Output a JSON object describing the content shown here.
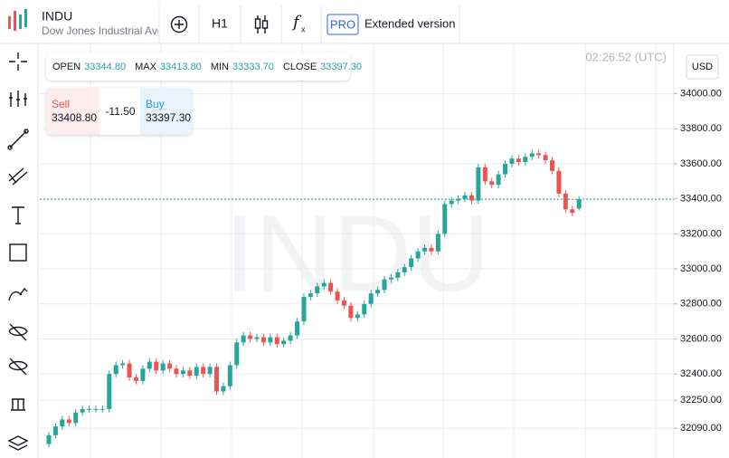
{
  "header": {
    "symbol": "INDU",
    "description": "Dow Jones Industrial Ave",
    "interval": "H1",
    "pro": "PRO",
    "extended": "Extended version"
  },
  "ohlc_info": {
    "open_label": "OPEN",
    "open": "33344.80",
    "max_label": "MAX",
    "max": "33413.80",
    "min_label": "MIN",
    "min": "33333.70",
    "close_label": "CLOSE",
    "close": "33397.30"
  },
  "trade": {
    "sell_label": "Sell",
    "sell": "33408.80",
    "spread": "-11.50",
    "buy_label": "Buy",
    "buy": "33397.30"
  },
  "clock": "02:26:52 (UTC)",
  "currency": "USD",
  "watermark": "INDU",
  "chart_data": {
    "type": "candlestick",
    "up_color": "#26a69a",
    "down_color": "#ef5350",
    "grid": true,
    "ylim": [
      31920,
      34215
    ],
    "yticks": [
      {
        "value": 34000,
        "label": "34000.00"
      },
      {
        "value": 33800,
        "label": "33800.00"
      },
      {
        "value": 33600,
        "label": "33600.00"
      },
      {
        "value": 33400,
        "label": "33400.00"
      },
      {
        "value": 33200,
        "label": "33200.00"
      },
      {
        "value": 33000,
        "label": "33000.00"
      },
      {
        "value": 32800,
        "label": "32800.00"
      },
      {
        "value": 32600,
        "label": "32600.00"
      },
      {
        "value": 32400,
        "label": "32400.00"
      },
      {
        "value": 32250,
        "label": "32250.00"
      },
      {
        "value": 32090,
        "label": "32090.00"
      }
    ],
    "open": [
      32000,
      32050,
      32100,
      32140,
      32120,
      32180,
      32200,
      32200,
      32200,
      32200,
      32400,
      32450,
      32460,
      32380,
      32360,
      32430,
      32470,
      32420,
      32460,
      32430,
      32400,
      32420,
      32390,
      32440,
      32400,
      32440,
      32300,
      32330,
      32450,
      32580,
      32620,
      32600,
      32610,
      32580,
      32610,
      32570,
      32590,
      32620,
      32700,
      32840,
      32860,
      32900,
      32920,
      32870,
      32820,
      32790,
      32720,
      32740,
      32800,
      32860,
      32880,
      32940,
      32950,
      32980,
      33010,
      33060,
      33100,
      33120,
      33100,
      33200,
      33370,
      33390,
      33400,
      33420,
      33390,
      33580,
      33500,
      33480,
      33540,
      33600,
      33630,
      33610,
      33640,
      33660,
      33650,
      33620,
      33560,
      33430,
      33340,
      33344.8
    ],
    "high": [
      32070,
      32120,
      32160,
      32160,
      32200,
      32220,
      32220,
      32220,
      32220,
      32420,
      32470,
      32480,
      32480,
      32400,
      32450,
      32490,
      32490,
      32480,
      32480,
      32450,
      32440,
      32440,
      32460,
      32460,
      32460,
      32460,
      32350,
      32470,
      32600,
      32640,
      32640,
      32630,
      32630,
      32630,
      32630,
      32610,
      32640,
      32720,
      32860,
      32880,
      32920,
      32940,
      32940,
      32890,
      32840,
      32810,
      32760,
      32820,
      32880,
      32900,
      32960,
      32970,
      33000,
      33030,
      33080,
      33120,
      33140,
      33140,
      33220,
      33390,
      33410,
      33420,
      33440,
      33440,
      33600,
      33600,
      33520,
      33560,
      33620,
      33650,
      33650,
      33660,
      33680,
      33680,
      33670,
      33640,
      33580,
      33450,
      33360,
      33413.8
    ],
    "low": [
      31980,
      32030,
      32080,
      32100,
      32100,
      32160,
      32180,
      32180,
      32180,
      32180,
      32380,
      32430,
      32360,
      32340,
      32340,
      32410,
      32400,
      32400,
      32410,
      32380,
      32380,
      32370,
      32370,
      32380,
      32380,
      32280,
      32280,
      32310,
      32430,
      32560,
      32580,
      32580,
      32560,
      32560,
      32550,
      32550,
      32570,
      32600,
      32680,
      32820,
      32840,
      32880,
      32850,
      32800,
      32770,
      32700,
      32700,
      32720,
      32780,
      32840,
      32860,
      32920,
      32930,
      32960,
      32990,
      33040,
      33080,
      33080,
      33080,
      33180,
      33350,
      33370,
      33380,
      33370,
      33370,
      33480,
      33460,
      33460,
      33520,
      33580,
      33590,
      33590,
      33620,
      33630,
      33600,
      33540,
      33410,
      33320,
      33300,
      33333.7
    ],
    "close": [
      32050,
      32100,
      32140,
      32120,
      32180,
      32200,
      32200,
      32200,
      32200,
      32400,
      32450,
      32460,
      32380,
      32360,
      32430,
      32470,
      32420,
      32460,
      32430,
      32400,
      32420,
      32390,
      32440,
      32400,
      32440,
      32300,
      32330,
      32450,
      32580,
      32620,
      32600,
      32610,
      32580,
      32610,
      32570,
      32590,
      32620,
      32700,
      32840,
      32860,
      32900,
      32920,
      32870,
      32820,
      32790,
      32720,
      32740,
      32800,
      32860,
      32880,
      32940,
      32950,
      32980,
      33010,
      33060,
      33100,
      33120,
      33100,
      33200,
      33370,
      33390,
      33400,
      33420,
      33390,
      33580,
      33500,
      33480,
      33540,
      33600,
      33630,
      33610,
      33640,
      33660,
      33650,
      33620,
      33560,
      33430,
      33340,
      33320,
      33397.3
    ]
  }
}
